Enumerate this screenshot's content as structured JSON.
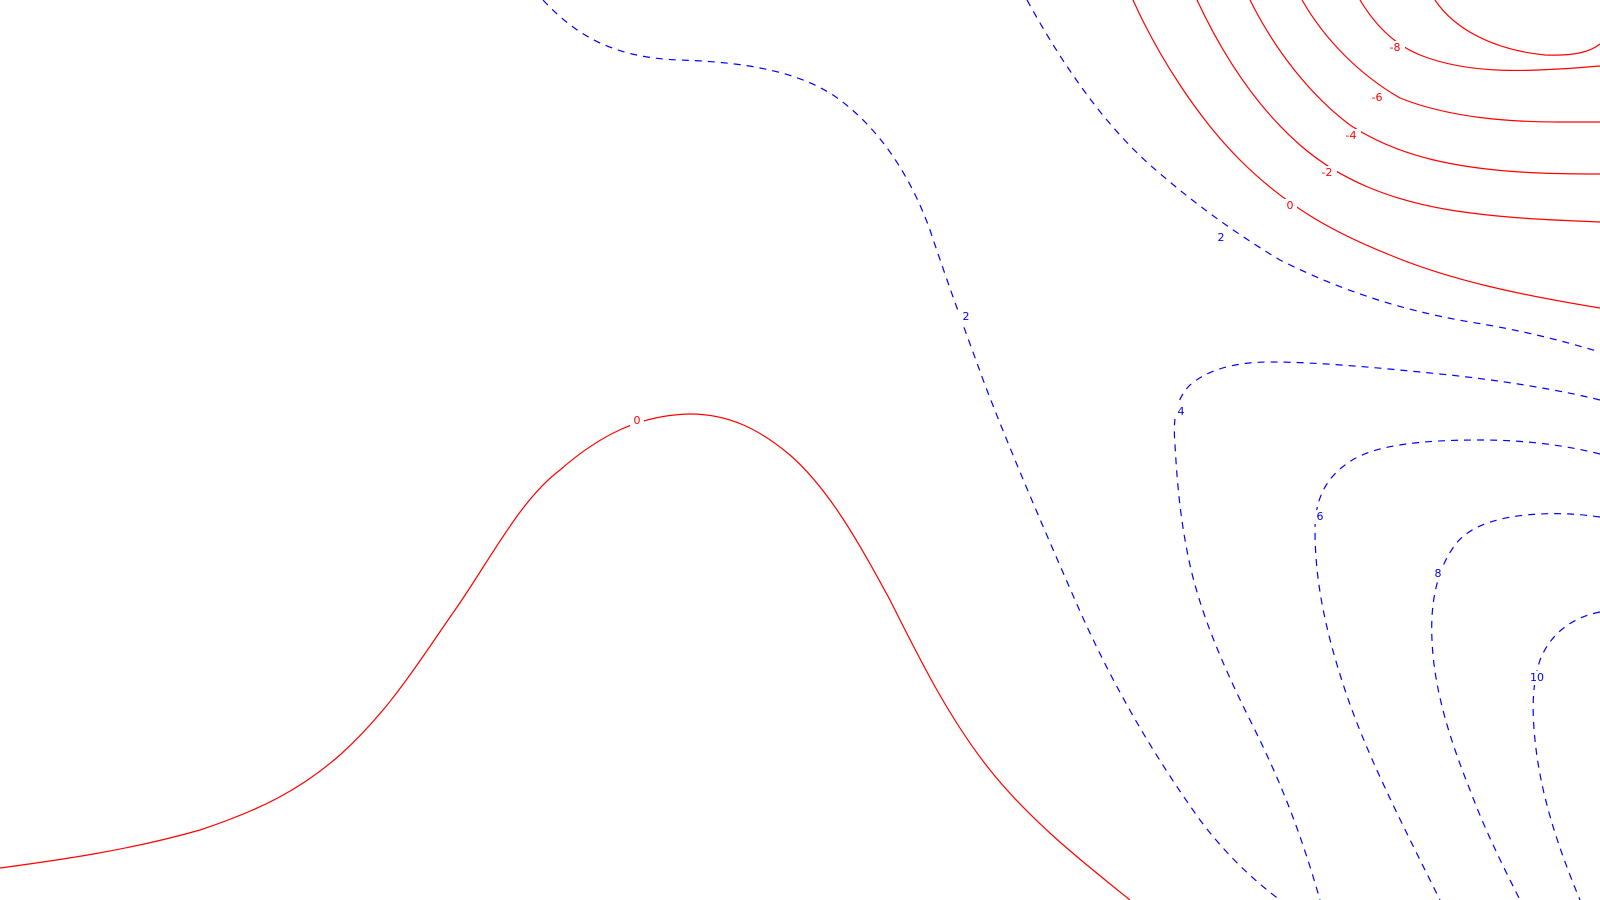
{
  "chart_data": {
    "type": "contour",
    "title": "",
    "xlabel": "",
    "ylabel": "",
    "grid": false,
    "colors": {
      "positive": "#ff0000",
      "negative": "#0000ff",
      "background": "#ffffff"
    },
    "levels": [
      {
        "value": 0,
        "label": "0",
        "style": "solid"
      },
      {
        "value": -2,
        "label": "-2",
        "style": "solid"
      },
      {
        "value": -4,
        "label": "-4",
        "style": "solid"
      },
      {
        "value": -6,
        "label": "-6",
        "style": "solid"
      },
      {
        "value": -8,
        "label": "-8",
        "style": "solid"
      },
      {
        "value": 2,
        "label": "2",
        "style": "dashed"
      },
      {
        "value": 4,
        "label": "4",
        "style": "dashed"
      },
      {
        "value": 6,
        "label": "6",
        "style": "dashed"
      },
      {
        "value": 8,
        "label": "8",
        "style": "dashed"
      },
      {
        "value": 10,
        "label": "10",
        "style": "dashed"
      }
    ]
  }
}
